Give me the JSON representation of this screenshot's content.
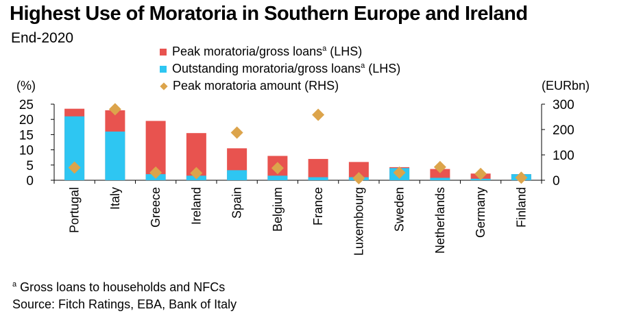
{
  "header": {
    "title": "Highest Use of Moratoria in Southern Europe and Ireland",
    "subtitle": "End-2020"
  },
  "legend": {
    "peak_label": "Peak moratoria/gross loans",
    "outstanding_label": "Outstanding moratoria/gross loans",
    "amount_label": "Peak moratoria amount (RHS)",
    "sup_mark": "a",
    "lhs_suffix": " (LHS)"
  },
  "axes": {
    "left_unit": "(%)",
    "right_unit": "(EURbn)"
  },
  "footnotes": {
    "sup_mark": "a",
    "note": " Gross loans to households and NFCs",
    "source": "Source: Fitch Ratings, EBA, Bank of Italy"
  },
  "colors": {
    "peak": "#e8534f",
    "outstanding": "#2ec6f2",
    "amount": "#dca44b"
  },
  "chart_data": {
    "type": "bar",
    "title": "Highest Use of Moratoria in Southern Europe and Ireland",
    "subtitle": "End-2020",
    "ylabel_left": "(%)",
    "ylabel_right": "(EURbn)",
    "ylim_left": [
      0,
      25
    ],
    "ylim_right": [
      0,
      300
    ],
    "yticks_left": [
      0,
      5,
      10,
      15,
      20,
      25
    ],
    "yticks_right": [
      0,
      100,
      200,
      300
    ],
    "categories": [
      "Portugal",
      "Italy",
      "Greece",
      "Ireland",
      "Spain",
      "Belgium",
      "France",
      "Luxembourg",
      "Sweden",
      "Netherlands",
      "Germany",
      "Finland"
    ],
    "series": [
      {
        "name": "Peak moratoria/gross loans (LHS)",
        "kind": "bar",
        "axis": "left",
        "values": [
          23.5,
          23.0,
          19.5,
          15.5,
          10.5,
          8.0,
          7.0,
          6.0,
          4.3,
          3.7,
          2.2,
          2.0
        ]
      },
      {
        "name": "Outstanding moratoria/gross loans (LHS)",
        "kind": "bar",
        "axis": "left",
        "values": [
          21.0,
          16.0,
          2.0,
          1.5,
          3.3,
          1.5,
          1.0,
          1.0,
          4.0,
          0.8,
          0.5,
          2.0
        ]
      },
      {
        "name": "Peak moratoria amount (RHS)",
        "kind": "scatter",
        "axis": "right",
        "values": [
          50,
          280,
          30,
          28,
          188,
          48,
          258,
          8,
          30,
          52,
          25,
          10
        ]
      }
    ]
  }
}
